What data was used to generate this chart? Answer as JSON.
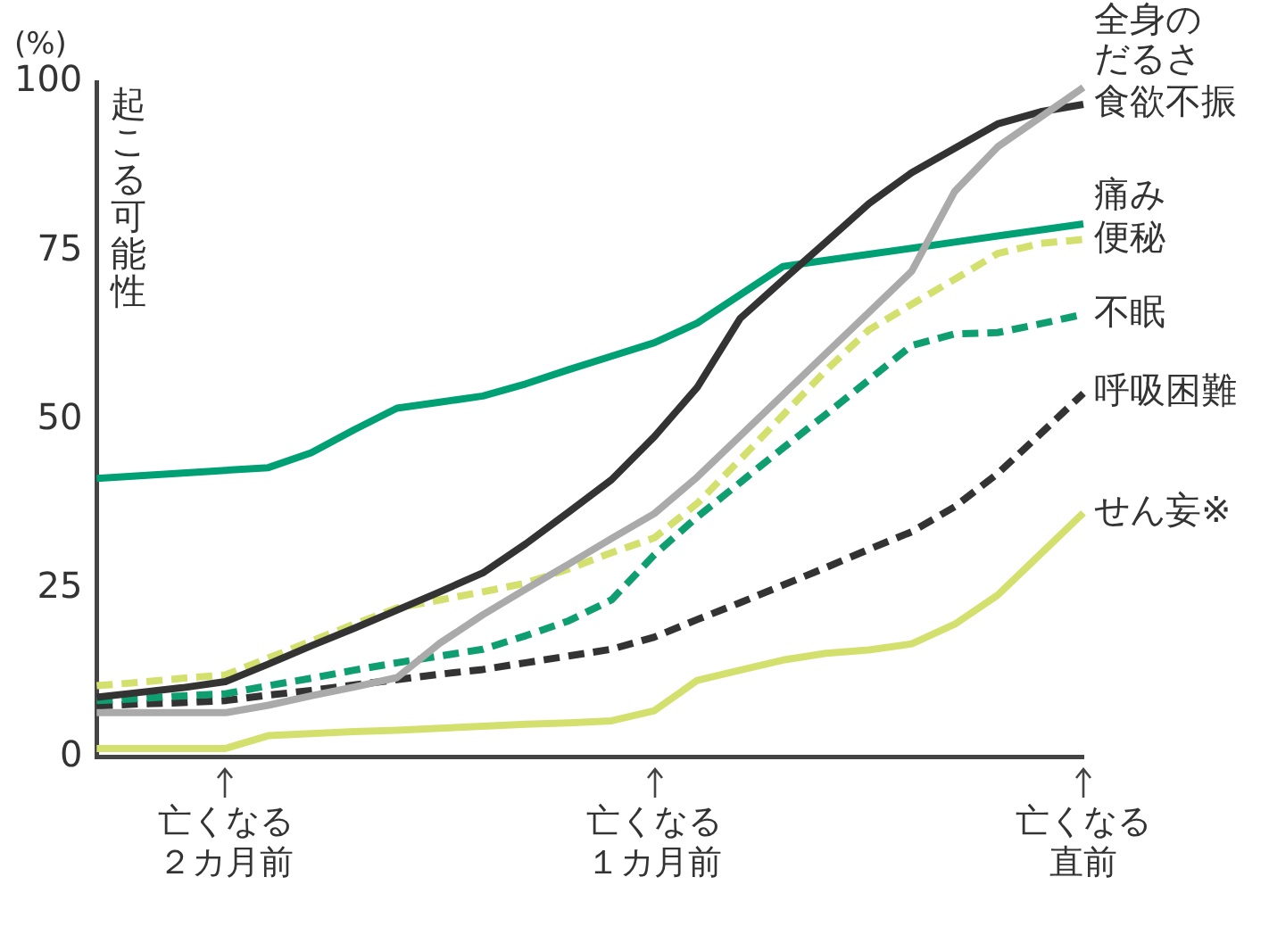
{
  "chart_data": {
    "type": "line",
    "ylabel": "起こる可能性",
    "annotations": [
      "(%)"
    ],
    "categories": [
      null,
      null,
      null,
      "亡くなる２カ月前",
      null,
      null,
      null,
      null,
      null,
      null,
      null,
      null,
      null,
      "亡くなる１カ月前",
      null,
      null,
      null,
      null,
      null,
      null,
      null,
      null,
      null,
      "亡くなる直前"
    ],
    "ylim": [
      0,
      100
    ],
    "yticks": [
      0,
      25,
      50,
      75,
      100
    ],
    "grid": false,
    "legend": false,
    "marker": "none",
    "series": [
      {
        "name": "全身のだるさ",
        "color": "#aaaaaa",
        "line_style": "solid",
        "values": [
          6.6,
          6.6,
          6.6,
          6.6,
          7.7,
          9.1,
          10.4,
          11.8,
          16.9,
          21.1,
          24.9,
          28.6,
          32.4,
          36.1,
          41.5,
          47.6,
          53.7,
          59.8,
          65.9,
          72,
          83.8,
          90.4,
          94.8,
          99.2
        ]
      },
      {
        "name": "食欲不振",
        "color": "#333333",
        "line_style": "solid",
        "values": [
          8.9,
          9.6,
          10.3,
          11.2,
          13.8,
          16.5,
          19.1,
          21.8,
          24.5,
          27.3,
          31.6,
          36.3,
          41.1,
          47.5,
          54.8,
          65,
          70.7,
          76.3,
          82,
          86.6,
          90.2,
          93.8,
          95.6,
          96.7
        ]
      },
      {
        "name": "痛み",
        "color": "#00a075",
        "line_style": "solid",
        "values": [
          41.3,
          41.7,
          42.1,
          42.5,
          42.9,
          45.1,
          48.5,
          51.7,
          52.6,
          53.5,
          55.3,
          57.4,
          59.4,
          61.4,
          64.3,
          68.5,
          72.7,
          73.6,
          74.5,
          75.4,
          76.3,
          77.2,
          78.1,
          79
        ]
      },
      {
        "name": "便秘",
        "color": "#d4e06e",
        "line_style": "dashed",
        "values": [
          10.6,
          11.1,
          11.7,
          12.2,
          14.7,
          17.2,
          19.7,
          22.1,
          23.3,
          24.5,
          25.8,
          27.9,
          30.3,
          32.5,
          37.6,
          44.1,
          50.7,
          57.3,
          63.3,
          67.1,
          70.8,
          74.6,
          76.1,
          76.7
        ]
      },
      {
        "name": "不眠",
        "color": "#0f9e70",
        "line_style": "dashed",
        "values": [
          8.4,
          8.7,
          9.1,
          9.4,
          10.6,
          11.7,
          12.9,
          14,
          15,
          16,
          18,
          20.2,
          23.3,
          30,
          35.6,
          40.7,
          45.8,
          50.8,
          55.9,
          61,
          62.7,
          62.9,
          64.2,
          65.6
        ]
      },
      {
        "name": "呼吸困難",
        "color": "#333333",
        "line_style": "dashed",
        "values": [
          7.6,
          7.9,
          8.1,
          8.4,
          9.2,
          9.9,
          10.7,
          11.5,
          12.3,
          13,
          14,
          15,
          16,
          17.8,
          20.4,
          22.9,
          25.5,
          28.1,
          30.8,
          33.4,
          37.1,
          42,
          47.9,
          53.9
        ]
      },
      {
        "name": "せん妄※",
        "color": "#d4e06e",
        "line_style": "solid",
        "values": [
          1.3,
          1.3,
          1.3,
          1.3,
          3.2,
          3.5,
          3.8,
          4,
          4.3,
          4.6,
          4.9,
          5.1,
          5.4,
          6.9,
          11.4,
          12.9,
          14.4,
          15.4,
          15.9,
          16.8,
          19.7,
          24,
          30.1,
          36.2
        ]
      }
    ]
  }
}
